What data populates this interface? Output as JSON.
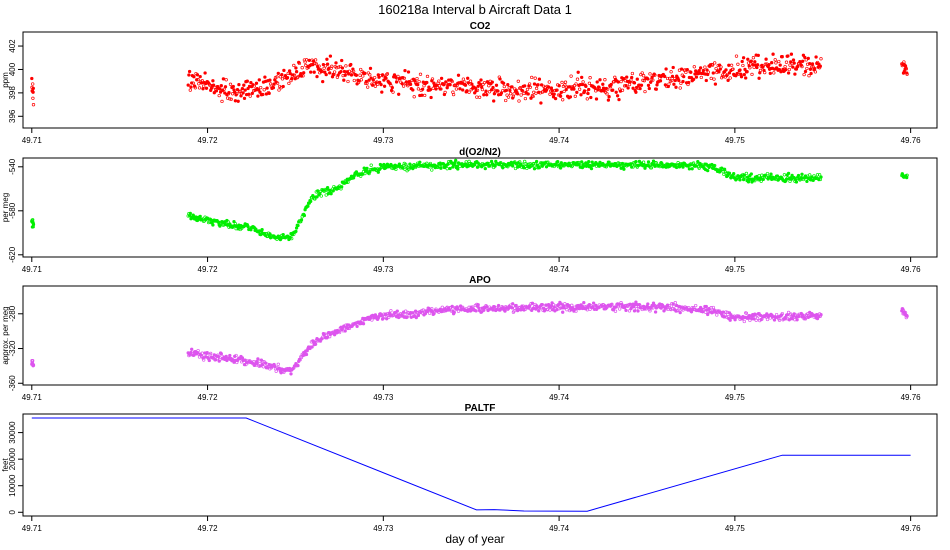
{
  "figure": {
    "title": "160218a   Interval b Aircraft Data 1",
    "xlabel": "day of year"
  },
  "chart_data": [
    {
      "type": "scatter",
      "title": "CO2",
      "ylabel": "ppm",
      "color": "#ff0000",
      "xlim": [
        49.7095,
        49.7615
      ],
      "ylim": [
        395.0,
        403.2
      ],
      "x_ticks": [
        "49.71",
        "49.72",
        "49.73",
        "49.74",
        "49.75",
        "49.76"
      ],
      "y_ticks": [
        "396",
        "398",
        "400",
        "402"
      ],
      "segments": [
        {
          "x_start": 49.71,
          "x_end": 49.7101,
          "anchors": [
            [
              49.71,
              398.4
            ],
            [
              49.7101,
              397.8
            ]
          ],
          "noise": 1.0,
          "n": 9
        },
        {
          "x_start": 49.7189,
          "x_end": 49.7549,
          "anchors": [
            [
              49.7189,
              399.2
            ],
            [
              49.7215,
              398.0
            ],
            [
              49.7235,
              398.6
            ],
            [
              49.7255,
              400.2
            ],
            [
              49.728,
              399.8
            ],
            [
              49.73,
              399.0
            ],
            [
              49.7335,
              398.6
            ],
            [
              49.7385,
              398.2
            ],
            [
              49.742,
              398.4
            ],
            [
              49.7455,
              399.0
            ],
            [
              49.748,
              399.6
            ],
            [
              49.7505,
              400.0
            ],
            [
              49.7549,
              400.4
            ]
          ],
          "noise": 0.8,
          "n": 900
        },
        {
          "x_start": 49.7595,
          "x_end": 49.7598,
          "anchors": [
            [
              49.7595,
              400.2
            ],
            [
              49.7598,
              399.8
            ]
          ],
          "noise": 0.6,
          "n": 14
        }
      ]
    },
    {
      "type": "scatter",
      "title": "d(O2/N2)",
      "ylabel": "per meg",
      "color": "#00ee00",
      "xlim": [
        49.7095,
        49.7615
      ],
      "ylim": [
        -622,
        -532
      ],
      "x_ticks": [
        "49.71",
        "49.72",
        "49.73",
        "49.74",
        "49.75",
        "49.76"
      ],
      "y_ticks": [
        "-620",
        "-580",
        "-540"
      ],
      "segments": [
        {
          "x_start": 49.71,
          "x_end": 49.7101,
          "anchors": [
            [
              49.71,
              -588
            ],
            [
              49.7101,
              -594
            ]
          ],
          "noise": 3,
          "n": 9
        },
        {
          "x_start": 49.7189,
          "x_end": 49.7549,
          "anchors": [
            [
              49.7189,
              -586
            ],
            [
              49.7205,
              -590
            ],
            [
              49.7225,
              -596
            ],
            [
              49.7238,
              -604
            ],
            [
              49.7248,
              -604
            ],
            [
              49.726,
              -566
            ],
            [
              49.7275,
              -558
            ],
            [
              49.7285,
              -546
            ],
            [
              49.73,
              -540
            ],
            [
              49.735,
              -538
            ],
            [
              49.74,
              -538
            ],
            [
              49.7465,
              -538
            ],
            [
              49.7488,
              -540
            ],
            [
              49.75,
              -550
            ],
            [
              49.7549,
              -550
            ]
          ],
          "noise": 3,
          "n": 900
        },
        {
          "x_start": 49.7595,
          "x_end": 49.7598,
          "anchors": [
            [
              49.7595,
              -548
            ],
            [
              49.7598,
              -550
            ]
          ],
          "noise": 2,
          "n": 14
        }
      ]
    },
    {
      "type": "scatter",
      "title": "APO",
      "ylabel": "approx. per meg",
      "color": "#dd55ee",
      "xlim": [
        49.7095,
        49.7615
      ],
      "ylim": [
        -362,
        -248
      ],
      "x_ticks": [
        "49.71",
        "49.72",
        "49.73",
        "49.74",
        "49.75",
        "49.76"
      ],
      "y_ticks": [
        "-360",
        "-320",
        "-280"
      ],
      "segments": [
        {
          "x_start": 49.71,
          "x_end": 49.7101,
          "anchors": [
            [
              49.71,
              -334
            ],
            [
              49.7101,
              -342
            ]
          ],
          "noise": 4,
          "n": 9
        },
        {
          "x_start": 49.7189,
          "x_end": 49.7549,
          "anchors": [
            [
              49.7189,
              -326
            ],
            [
              49.7215,
              -332
            ],
            [
              49.7235,
              -340
            ],
            [
              49.7248,
              -346
            ],
            [
              49.726,
              -312
            ],
            [
              49.7275,
              -300
            ],
            [
              49.7292,
              -284
            ],
            [
              49.735,
              -274
            ],
            [
              49.74,
              -272
            ],
            [
              49.7465,
              -272
            ],
            [
              49.7488,
              -276
            ],
            [
              49.75,
              -284
            ],
            [
              49.7549,
              -282
            ]
          ],
          "noise": 4,
          "n": 900
        },
        {
          "x_start": 49.7595,
          "x_end": 49.7598,
          "anchors": [
            [
              49.7595,
              -274
            ],
            [
              49.7598,
              -284
            ]
          ],
          "noise": 3,
          "n": 14
        }
      ]
    },
    {
      "type": "line",
      "title": "PALTF",
      "ylabel": "feet",
      "color": "#0000ff",
      "xlim": [
        49.7095,
        49.7615
      ],
      "ylim": [
        -1400,
        37000
      ],
      "x_ticks": [
        "49.71",
        "49.72",
        "49.73",
        "49.74",
        "49.75",
        "49.76"
      ],
      "y_ticks": [
        "0",
        "10000",
        "20000",
        "30000"
      ],
      "x": [
        49.71,
        49.7222,
        49.7353,
        49.7363,
        49.738,
        49.7416,
        49.7527,
        49.76
      ],
      "y": [
        35500,
        35500,
        900,
        1000,
        500,
        400,
        21500,
        21500
      ]
    }
  ]
}
